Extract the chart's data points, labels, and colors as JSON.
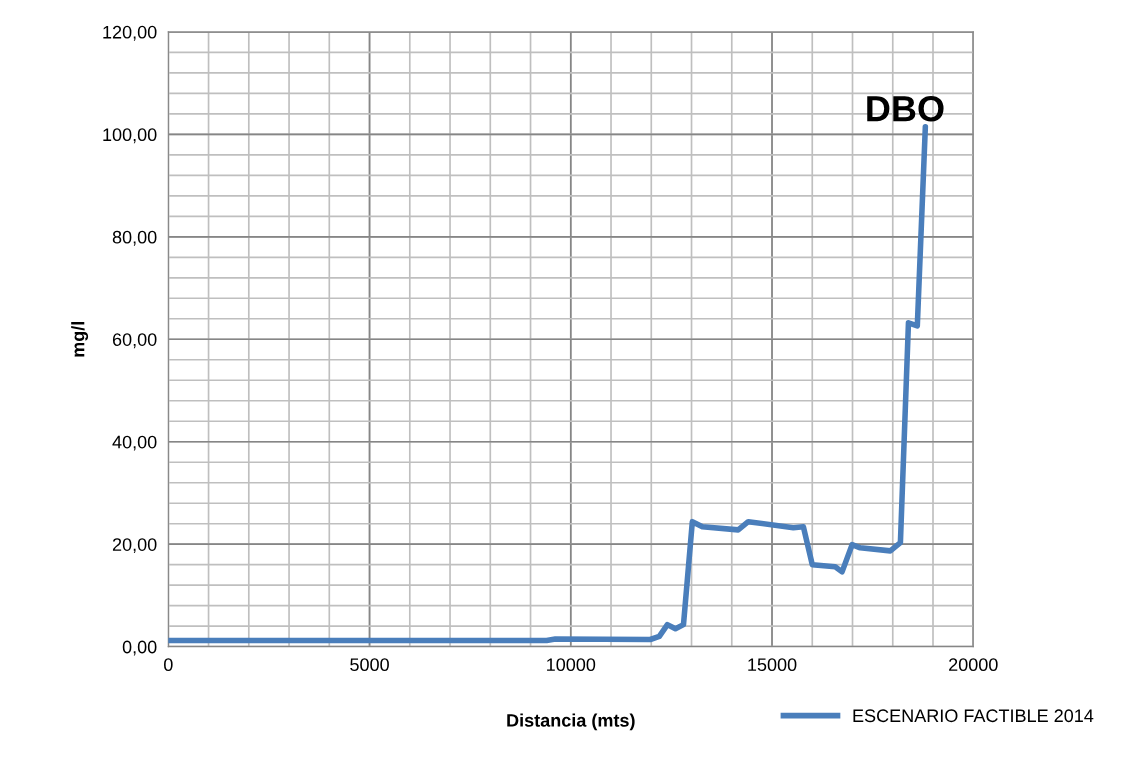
{
  "chart_data": {
    "type": "line",
    "xlabel": "Distancia (mts)",
    "ylabel": "mg/l",
    "annotations": [
      "DBO"
    ],
    "series": [
      {
        "name": "ESCENARIO FACTIBLE 2014",
        "color": "#4a7ebb",
        "x": [
          0,
          9400,
          9615,
          11975,
          12200,
          12400,
          12600,
          12800,
          13020,
          13270,
          14160,
          14410,
          15530,
          15780,
          16000,
          16570,
          16740,
          16990,
          17190,
          17940,
          18190,
          18390,
          18610,
          18810
        ],
        "values": [
          1.2,
          1.2,
          1.5,
          1.4,
          2.0,
          4.3,
          3.5,
          4.3,
          24.4,
          23.4,
          22.8,
          24.4,
          23.2,
          23.4,
          16.0,
          15.6,
          14.6,
          19.9,
          19.3,
          18.7,
          20.3,
          63.2,
          62.6,
          101.5
        ]
      }
    ],
    "xlim": [
      0,
      20000
    ],
    "xticks": [
      0,
      5000,
      10000,
      15000,
      20000
    ],
    "ylim": [
      0,
      120
    ],
    "yticks": [
      {
        "value": 0,
        "label": "0,00"
      },
      {
        "value": 20,
        "label": "20,00"
      },
      {
        "value": 40,
        "label": "40,00"
      },
      {
        "value": 60,
        "label": "60,00"
      },
      {
        "value": 80,
        "label": "80,00"
      },
      {
        "value": 100,
        "label": "100,00"
      },
      {
        "value": 120,
        "label": "120,00"
      }
    ],
    "grid": true,
    "legend": "bottom right",
    "marker": "none",
    "line_style": "solid"
  }
}
